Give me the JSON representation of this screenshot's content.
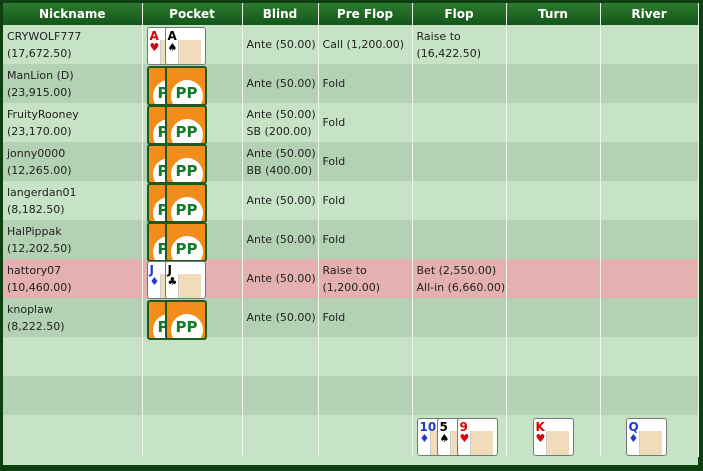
{
  "headers": [
    "Nickname",
    "Pocket",
    "Blind",
    "Pre Flop",
    "Flop",
    "Turn",
    "River"
  ],
  "rows": [
    {
      "name": "CRYWOLF777",
      "stack": "(17,672.50)",
      "pocket": [
        {
          "rank": "A",
          "suit": "♥"
        },
        {
          "rank": "A",
          "suit": "♠"
        }
      ],
      "blind": [
        "Ante (50.00)"
      ],
      "preflop": [
        "Call (1,200.00)"
      ],
      "flop": [
        "Raise to",
        "(16,422.50)"
      ],
      "highlight": false
    },
    {
      "name": "ManLion (D)",
      "stack": "(23,915.00)",
      "pocket": "hidden",
      "blind": [
        "Ante (50.00)"
      ],
      "preflop": [
        "Fold"
      ],
      "flop": []
    },
    {
      "name": "FruityRooney",
      "stack": "(23,170.00)",
      "pocket": "hidden",
      "blind": [
        "Ante (50.00)",
        "SB (200.00)"
      ],
      "preflop": [
        "Fold"
      ],
      "flop": []
    },
    {
      "name": "jonny0000",
      "stack": "(12,265.00)",
      "pocket": "hidden",
      "blind": [
        "Ante (50.00)",
        "BB (400.00)"
      ],
      "preflop": [
        "Fold"
      ],
      "flop": []
    },
    {
      "name": "langerdan01",
      "stack": "(8,182.50)",
      "pocket": "hidden",
      "blind": [
        "Ante (50.00)"
      ],
      "preflop": [
        "Fold"
      ],
      "flop": []
    },
    {
      "name": "HalPippak",
      "stack": "(12,202.50)",
      "pocket": "hidden",
      "blind": [
        "Ante (50.00)"
      ],
      "preflop": [
        "Fold"
      ],
      "flop": []
    },
    {
      "name": "hattory07",
      "stack": "(10,460.00)",
      "pocket": [
        {
          "rank": "J",
          "suit": "♦"
        },
        {
          "rank": "J",
          "suit": "♣"
        }
      ],
      "blind": [
        "Ante (50.00)"
      ],
      "preflop": [
        "Raise to",
        "(1,200.00)"
      ],
      "flop": [
        "Bet (2,550.00)",
        "All-in (6,660.00)"
      ],
      "highlight": true
    },
    {
      "name": "knoplaw",
      "stack": "(8,222.50)",
      "pocket": "hidden",
      "blind": [
        "Ante (50.00)"
      ],
      "preflop": [
        "Fold"
      ],
      "flop": []
    }
  ],
  "card_back_logo": "PP",
  "board": {
    "flop": [
      {
        "rank": "10",
        "suit": "♦"
      },
      {
        "rank": "5",
        "suit": "♠"
      },
      {
        "rank": "9",
        "suit": "♥"
      }
    ],
    "turn": [
      {
        "rank": "K",
        "suit": "♥"
      }
    ],
    "river": [
      {
        "rank": "Q",
        "suit": "♦"
      }
    ]
  },
  "colors": {
    "header": "#1f6a22",
    "row_light": "#c6e3c6",
    "row_dark": "#b3d2b3",
    "highlight": "#e4b0b0",
    "border": "#0d3f10"
  }
}
